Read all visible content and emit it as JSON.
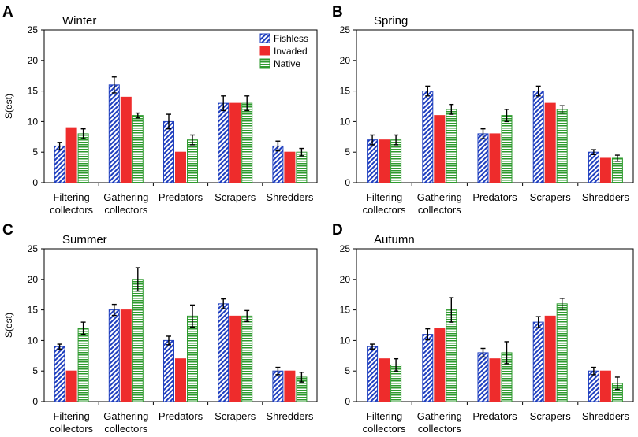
{
  "figure": {
    "legend": [
      {
        "name": "Fishless",
        "pattern": "diagonal",
        "color": "#1f3fbf"
      },
      {
        "name": "Invaded",
        "pattern": "solid",
        "color": "#ee2c2c"
      },
      {
        "name": "Native",
        "pattern": "horizontal",
        "color": "#2e9a2e"
      }
    ],
    "colors": {
      "fishless": "#1f3fbf",
      "invaded": "#ee2c2c",
      "native": "#2e9a2e",
      "frame": "#000000"
    }
  },
  "chart_data": [
    {
      "panel": "A",
      "title": "Winter",
      "type": "bar",
      "ylabel": "S(est)",
      "ylim": [
        0,
        25
      ],
      "yticks": [
        0,
        5,
        10,
        15,
        20,
        25
      ],
      "categories": [
        [
          "Filtering",
          "collectors"
        ],
        [
          "Gathering",
          "collectors"
        ],
        [
          "Predators"
        ],
        [
          "Scrapers"
        ],
        [
          "Shredders"
        ]
      ],
      "series": [
        {
          "name": "Fishless",
          "values": [
            6,
            16,
            10,
            13,
            6
          ],
          "errors": [
            0.6,
            1.3,
            1.2,
            1.2,
            0.8
          ]
        },
        {
          "name": "Invaded",
          "values": [
            9,
            14,
            5,
            13,
            5
          ],
          "errors": [
            0,
            0,
            0,
            0,
            0
          ]
        },
        {
          "name": "Native",
          "values": [
            8,
            11,
            7,
            13,
            5
          ],
          "errors": [
            0.8,
            0.4,
            0.8,
            1.2,
            0.6
          ]
        }
      ]
    },
    {
      "panel": "B",
      "title": "Spring",
      "type": "bar",
      "ylabel": "",
      "ylim": [
        0,
        25
      ],
      "yticks": [
        0,
        5,
        10,
        15,
        20,
        25
      ],
      "categories": [
        [
          "Filtering",
          "collectors"
        ],
        [
          "Gathering",
          "collectors"
        ],
        [
          "Predators"
        ],
        [
          "Scrapers"
        ],
        [
          "Shredders"
        ]
      ],
      "series": [
        {
          "name": "Fishless",
          "values": [
            7,
            15,
            8,
            15,
            5
          ],
          "errors": [
            0.8,
            0.8,
            0.8,
            0.8,
            0.4
          ]
        },
        {
          "name": "Invaded",
          "values": [
            7,
            11,
            8,
            13,
            4
          ],
          "errors": [
            0,
            0,
            0,
            0,
            0
          ]
        },
        {
          "name": "Native",
          "values": [
            7,
            12,
            11,
            12,
            4
          ],
          "errors": [
            0.8,
            0.8,
            1.0,
            0.6,
            0.5
          ]
        }
      ]
    },
    {
      "panel": "C",
      "title": "Summer",
      "type": "bar",
      "ylabel": "S(est)",
      "ylim": [
        0,
        25
      ],
      "yticks": [
        0,
        5,
        10,
        15,
        20,
        25
      ],
      "categories": [
        [
          "Filtering",
          "collectors"
        ],
        [
          "Gathering",
          "collectors"
        ],
        [
          "Predators"
        ],
        [
          "Scrapers"
        ],
        [
          "Shredders"
        ]
      ],
      "series": [
        {
          "name": "Fishless",
          "values": [
            9,
            15,
            10,
            16,
            5
          ],
          "errors": [
            0.4,
            0.9,
            0.7,
            0.8,
            0.6
          ]
        },
        {
          "name": "Invaded",
          "values": [
            5,
            15,
            7,
            14,
            5
          ],
          "errors": [
            0,
            0,
            0,
            0,
            0
          ]
        },
        {
          "name": "Native",
          "values": [
            12,
            20,
            14,
            14,
            4
          ],
          "errors": [
            1.0,
            1.9,
            1.8,
            0.9,
            0.8
          ]
        }
      ]
    },
    {
      "panel": "D",
      "title": "Autumn",
      "type": "bar",
      "ylabel": "",
      "ylim": [
        0,
        25
      ],
      "yticks": [
        0,
        5,
        10,
        15,
        20,
        25
      ],
      "categories": [
        [
          "Filtering",
          "collectors"
        ],
        [
          "Gathering",
          "collectors"
        ],
        [
          "Predators"
        ],
        [
          "Scrapers"
        ],
        [
          "Shredders"
        ]
      ],
      "series": [
        {
          "name": "Fishless",
          "values": [
            9,
            11,
            8,
            13,
            5
          ],
          "errors": [
            0.4,
            0.9,
            0.7,
            0.9,
            0.6
          ]
        },
        {
          "name": "Invaded",
          "values": [
            7,
            12,
            7,
            14,
            5
          ],
          "errors": [
            0,
            0,
            0,
            0,
            0
          ]
        },
        {
          "name": "Native",
          "values": [
            6,
            15,
            8,
            16,
            3
          ],
          "errors": [
            1.0,
            2.0,
            1.8,
            0.9,
            1.0
          ]
        }
      ]
    }
  ]
}
